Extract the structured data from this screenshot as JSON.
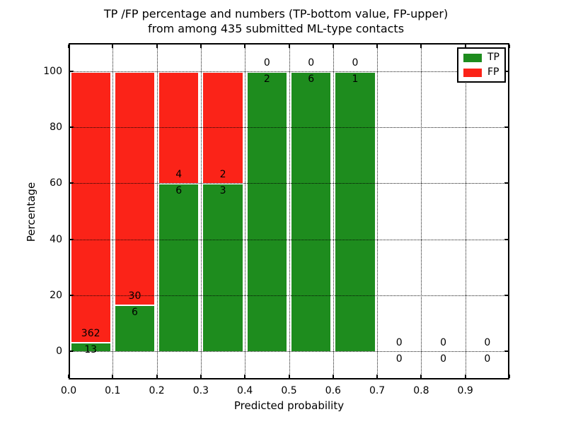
{
  "title": {
    "line1": "TP /FP percentage and numbers (TP-bottom value, FP-upper)",
    "line2": "from among 435 submitted ML-type contacts"
  },
  "legend": {
    "tp": "TP",
    "fp": "FP"
  },
  "colors": {
    "tp_green": "#1e8c1e",
    "fp_red": "#fb2318",
    "grid": "#000000",
    "background": "#ffffff"
  },
  "chart_data": {
    "type": "bar",
    "stacked": true,
    "normalized": "percent_of_bin_total",
    "title": "TP /FP percentage and numbers (TP-bottom value, FP-upper) from among 435 submitted ML-type contacts",
    "xlabel": "Predicted probability",
    "ylabel": "Percentage",
    "total_contacts": 435,
    "bin_width": 0.1,
    "categories": [
      "0.0",
      "0.1",
      "0.2",
      "0.3",
      "0.4",
      "0.5",
      "0.6",
      "0.7",
      "0.8",
      "0.9"
    ],
    "series": [
      {
        "name": "TP",
        "color": "#1e8c1e",
        "counts": [
          13,
          6,
          6,
          3,
          2,
          6,
          1,
          0,
          0,
          0
        ]
      },
      {
        "name": "FP",
        "color": "#fb2318",
        "counts": [
          362,
          30,
          4,
          2,
          0,
          0,
          0,
          0,
          0,
          0
        ]
      }
    ],
    "tp_percent_of_bin": [
      3.5,
      16.7,
      60,
      60,
      100,
      100,
      100,
      0,
      0,
      0
    ],
    "xticks": [
      "0.0",
      "0.1",
      "0.2",
      "0.3",
      "0.4",
      "0.5",
      "0.6",
      "0.7",
      "0.8",
      "0.9"
    ],
    "yticks": [
      0,
      20,
      40,
      60,
      80,
      100
    ],
    "xlim": [
      0,
      1
    ],
    "ylim": [
      -10,
      110
    ],
    "grid": true,
    "grid_style": "dotted",
    "legend_position": "upper right"
  }
}
